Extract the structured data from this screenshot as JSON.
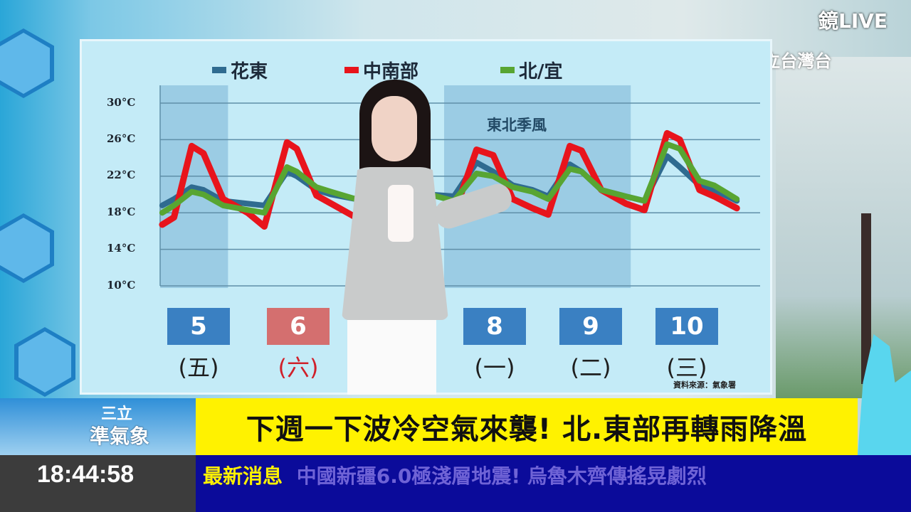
{
  "channel": {
    "live_label": "鏡LIVE",
    "logo_text": "SET 三立台灣台"
  },
  "program_logo": {
    "line1": "三立",
    "line2": "準氣象"
  },
  "headline": "下週一下波冷空氣來襲! 北.東部再轉雨降溫",
  "clock": "18:44:58",
  "ticker": {
    "label": "最新消息",
    "text": "中國新疆6.0極淺層地震! 烏魯木齊傳搖晃劇烈"
  },
  "source_note": "資料來源：氣象署",
  "shaded_annotation": "東北季風",
  "days": [
    {
      "date": "5",
      "weekday": "(五)",
      "highlight": false
    },
    {
      "date": "6",
      "weekday": "(六)",
      "highlight": true
    },
    {
      "date": "8",
      "weekday": "(一)",
      "highlight": false
    },
    {
      "date": "9",
      "weekday": "(二)",
      "highlight": false
    },
    {
      "date": "10",
      "weekday": "(三)",
      "highlight": false
    }
  ],
  "colors": {
    "panel": "#c4ebf7",
    "day_box": "#3a80c2",
    "day_box_weekend": "#d46f6f",
    "weekend_text": "#d0202a",
    "headline_bg": "#fff200",
    "ticker_bg": "#0b0b9a",
    "ticker_label": "#fff200",
    "ticker_text": "#6f63d6"
  },
  "chart_data": {
    "type": "line",
    "title": "",
    "ylabel": "",
    "xlabel": "",
    "yticks": [
      "30°C",
      "26°C",
      "22°C",
      "18°C",
      "14°C",
      "10°C"
    ],
    "ylim": [
      10,
      30
    ],
    "xlim": [
      5.1,
      11
    ],
    "grid": true,
    "legend_position": "top",
    "shaded_ranges": [
      [
        5.11,
        5.8
      ],
      [
        8.0,
        9.9
      ]
    ],
    "x": [
      5.13,
      5.25,
      5.43,
      5.55,
      5.75,
      6.0,
      6.17,
      6.4,
      6.5,
      6.7,
      6.85,
      7.1,
      7.3,
      7.4,
      7.6,
      7.85,
      8.1,
      8.33,
      8.5,
      8.7,
      8.9,
      9.06,
      9.28,
      9.4,
      9.6,
      9.85,
      10.04,
      10.27,
      10.4,
      10.6,
      10.75,
      10.98
    ],
    "series": [
      {
        "name": "花東",
        "color": "#2f6b90",
        "values": [
          18.8,
          19.5,
          20.8,
          20.5,
          19.3,
          19.0,
          18.8,
          22.5,
          22.0,
          20.5,
          20.0,
          19.5,
          22.5,
          22.0,
          20.5,
          20.0,
          19.8,
          23.5,
          22.5,
          21.0,
          20.5,
          19.8,
          23.3,
          22.5,
          20.5,
          19.8,
          19.3,
          24.2,
          23.0,
          21.0,
          20.5,
          19.3
        ]
      },
      {
        "name": "中南部",
        "color": "#e8141c",
        "values": [
          16.7,
          17.5,
          25.3,
          24.5,
          19.5,
          18.0,
          16.5,
          25.7,
          25.0,
          19.9,
          19.0,
          17.5,
          25.0,
          24.5,
          19.5,
          18.5,
          17.8,
          24.9,
          24.3,
          19.5,
          18.5,
          17.8,
          25.3,
          24.8,
          20.5,
          19.0,
          18.3,
          26.7,
          26.0,
          20.5,
          19.8,
          18.5
        ]
      },
      {
        "name": "北/宜",
        "color": "#58a532",
        "values": [
          18.0,
          18.8,
          20.3,
          20.0,
          18.8,
          18.3,
          18.0,
          23.0,
          22.5,
          20.8,
          20.3,
          19.5,
          22.5,
          22.0,
          20.5,
          20.0,
          19.3,
          22.3,
          22.0,
          20.8,
          20.3,
          19.5,
          22.8,
          22.5,
          20.5,
          19.8,
          19.3,
          25.5,
          25.0,
          21.5,
          21.0,
          19.5
        ]
      }
    ]
  }
}
